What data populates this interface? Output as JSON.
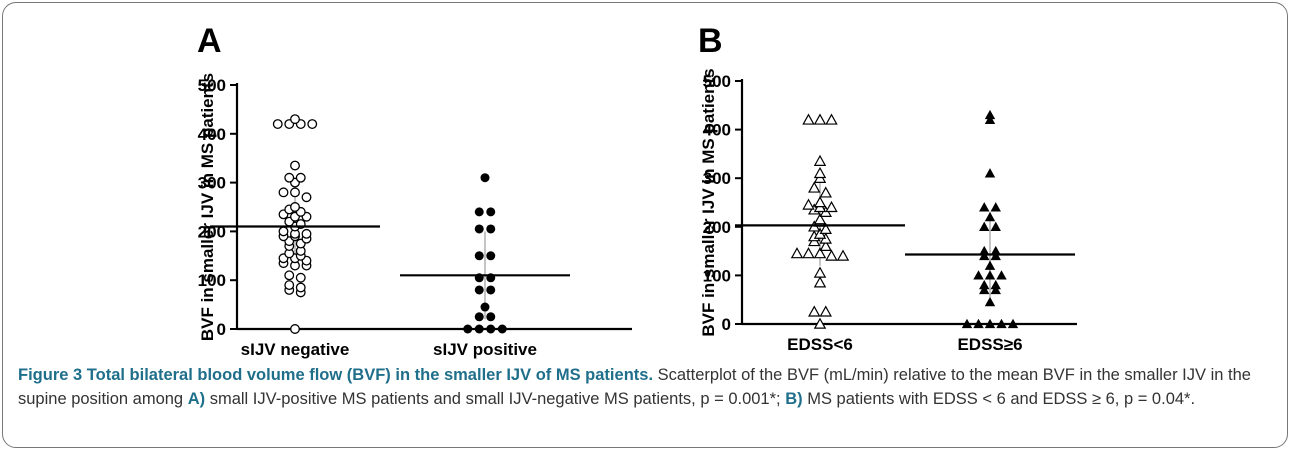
{
  "colors": {
    "frame": "#777777",
    "caption_title": "#1f6f8b",
    "text": "#333333",
    "error_bar": "#b0b0b0"
  },
  "caption": {
    "title": "Figure 3 Total bilateral blood volume flow (BVF) in the smaller IJV of MS patients.",
    "part1": " Scatterplot of the BVF (mL/min) relative to the mean BVF in the smaller IJV in the supine position among ",
    "label_a": "A)",
    "part2": " small IJV-positive MS patients and small IJV-negative MS patients, p = 0.001*; ",
    "label_b": "B)",
    "part3": " MS patients with EDSS < 6 and EDSS ≥ 6, p = 0.04*."
  },
  "chart_data": [
    {
      "type": "scatter",
      "panel": "A",
      "ylabel": "BVF in smaller IJV in MS patients",
      "ylim": [
        0,
        500
      ],
      "yticks": [
        0,
        100,
        200,
        300,
        400,
        500
      ],
      "categories": [
        "sIJV negative",
        "sIJV positive"
      ],
      "series": [
        {
          "category": "sIJV negative",
          "marker": "open-circle",
          "mean": 210,
          "sd_low": 130,
          "sd_high": 290,
          "values": [
            430,
            420,
            420,
            420,
            420,
            335,
            310,
            310,
            300,
            280,
            280,
            270,
            250,
            245,
            240,
            235,
            230,
            230,
            220,
            215,
            210,
            200,
            195,
            195,
            190,
            190,
            185,
            180,
            175,
            170,
            160,
            155,
            150,
            145,
            145,
            140,
            135,
            130,
            130,
            110,
            105,
            90,
            85,
            80,
            75,
            0
          ]
        },
        {
          "category": "sIJV positive",
          "marker": "filled-circle",
          "mean": 110,
          "sd_low": 20,
          "sd_high": 200,
          "values": [
            310,
            240,
            240,
            205,
            205,
            150,
            150,
            105,
            105,
            80,
            80,
            45,
            25,
            25,
            0,
            0,
            0,
            0
          ]
        }
      ]
    },
    {
      "type": "scatter",
      "panel": "B",
      "ylabel": "BVF in smaller IJV in MS patients",
      "ylim": [
        0,
        500
      ],
      "yticks": [
        0,
        100,
        200,
        300,
        400,
        500
      ],
      "categories": [
        "EDSS<6",
        "EDSS≥6"
      ],
      "series": [
        {
          "category": "EDSS<6",
          "marker": "open-triangle",
          "mean": 203,
          "sd_low": 120,
          "sd_high": 290,
          "values": [
            420,
            420,
            420,
            335,
            310,
            300,
            280,
            270,
            250,
            245,
            240,
            240,
            235,
            230,
            215,
            210,
            200,
            195,
            185,
            180,
            175,
            170,
            160,
            145,
            145,
            145,
            140,
            140,
            105,
            85,
            25,
            25,
            0
          ]
        },
        {
          "category": "EDSS≥6",
          "marker": "filled-triangle",
          "mean": 143,
          "sd_low": 55,
          "sd_high": 230,
          "values": [
            430,
            420,
            310,
            240,
            240,
            220,
            200,
            200,
            150,
            150,
            140,
            140,
            120,
            100,
            100,
            100,
            80,
            80,
            70,
            70,
            45,
            0,
            0,
            0,
            0,
            0
          ]
        }
      ]
    }
  ]
}
